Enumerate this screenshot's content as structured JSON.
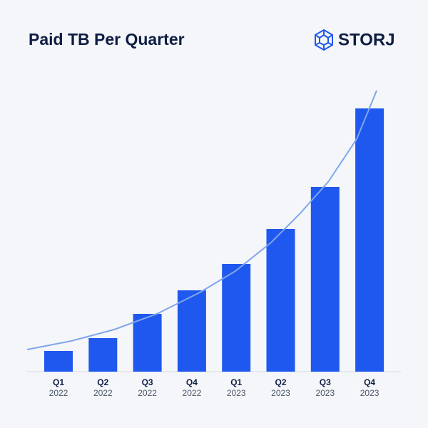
{
  "chart_data": {
    "type": "bar",
    "title": "Paid TB Per Quarter",
    "logo": "STORJ",
    "categories": [
      {
        "quarter": "Q1",
        "year": "2022"
      },
      {
        "quarter": "Q2",
        "year": "2022"
      },
      {
        "quarter": "Q3",
        "year": "2022"
      },
      {
        "quarter": "Q4",
        "year": "2022"
      },
      {
        "quarter": "Q1",
        "year": "2023"
      },
      {
        "quarter": "Q2",
        "year": "2023"
      },
      {
        "quarter": "Q3",
        "year": "2023"
      },
      {
        "quarter": "Q4",
        "year": "2023"
      }
    ],
    "values": [
      29,
      47,
      81,
      114,
      151,
      200,
      259,
      369
    ],
    "color": "#1f58ee"
  }
}
